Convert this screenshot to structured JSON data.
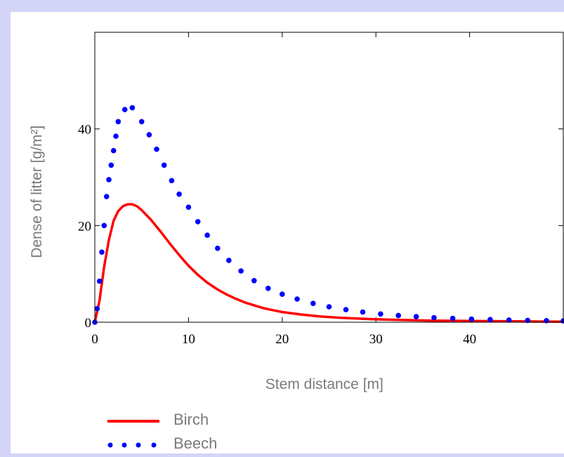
{
  "chart_data": {
    "type": "line",
    "title": "",
    "xlabel": "Stem distance [m]",
    "ylabel": "Dense of litter [g/m²]",
    "xlim": [
      0,
      50
    ],
    "ylim": [
      0,
      60
    ],
    "xticks": [
      0,
      10,
      20,
      30,
      40
    ],
    "yticks": [
      0,
      20,
      40
    ],
    "grid": false,
    "legend_position": "bottom-left",
    "series": [
      {
        "name": "Birch",
        "style": "solid",
        "color": "#ff0000",
        "x": [
          0,
          0.5,
          1,
          1.5,
          2,
          2.5,
          3,
          3.5,
          4,
          4.5,
          5,
          6,
          7,
          8,
          9,
          10,
          11,
          12,
          13,
          14,
          15,
          16,
          17,
          18,
          19,
          20,
          22,
          24,
          26,
          28,
          30,
          33,
          36,
          40,
          45,
          50
        ],
        "y": [
          0,
          4.5,
          11.5,
          17,
          21,
          23,
          24,
          24.4,
          24.4,
          24,
          23.2,
          21.2,
          18.8,
          16.3,
          13.9,
          11.7,
          9.8,
          8.2,
          6.9,
          5.8,
          4.9,
          4.1,
          3.5,
          2.9,
          2.5,
          2.1,
          1.6,
          1.2,
          0.95,
          0.75,
          0.6,
          0.45,
          0.34,
          0.25,
          0.17,
          0.12
        ]
      },
      {
        "name": "Beech",
        "style": "dotted",
        "color": "#0000ff",
        "x": [
          0,
          0.25,
          0.5,
          0.75,
          1,
          1.25,
          1.5,
          1.75,
          2,
          2.25,
          2.5,
          3.2,
          4,
          5,
          5.8,
          6.6,
          7.4,
          8.2,
          9,
          10,
          11,
          12,
          13.1,
          14.3,
          15.6,
          17,
          18.5,
          20,
          21.6,
          23.3,
          25,
          26.8,
          28.6,
          30.5,
          32.4,
          34.3,
          36.2,
          38.2,
          40.2,
          42.2,
          44.2,
          46.2,
          48.2,
          50
        ],
        "y": [
          0,
          2.8,
          8.5,
          14.5,
          20,
          26,
          29.5,
          32.5,
          35.5,
          38.5,
          41.5,
          44,
          44.4,
          41.5,
          38.8,
          35.8,
          32.5,
          29.3,
          26.5,
          23.8,
          20.8,
          18,
          15.3,
          12.8,
          10.6,
          8.6,
          7,
          5.8,
          4.8,
          3.9,
          3.2,
          2.6,
          2.1,
          1.7,
          1.4,
          1.15,
          0.95,
          0.8,
          0.65,
          0.55,
          0.45,
          0.38,
          0.32,
          0.28
        ]
      }
    ]
  }
}
